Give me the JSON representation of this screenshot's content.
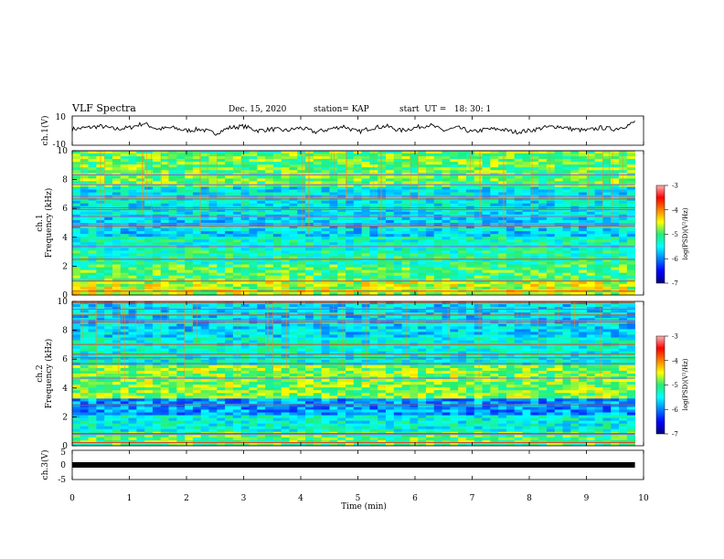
{
  "header": {
    "title": "VLF Spectra",
    "date": "Dec. 15, 2020",
    "station": "station= KAP",
    "start": "start  UT =   18: 30: 1"
  },
  "chart_data": [
    {
      "type": "line",
      "name": "ch1-voltage",
      "ylabel": "ch.1(V)",
      "ylim": [
        -10,
        10
      ],
      "yticks": [
        "10",
        "-10"
      ],
      "x": [
        0,
        0.25,
        0.5,
        0.75,
        1.0,
        1.25,
        1.5,
        1.75,
        2.0,
        2.25,
        2.5,
        2.75,
        3.0,
        3.25,
        3.5,
        3.75,
        4.0,
        4.25,
        4.5,
        4.75,
        5.0,
        5.25,
        5.5,
        5.75,
        6.0,
        6.25,
        6.5,
        6.75,
        7.0,
        7.25,
        7.5,
        7.75,
        8.0,
        8.25,
        8.5,
        8.75,
        9.0,
        9.25,
        9.5,
        9.75,
        9.85
      ],
      "values": [
        1,
        2,
        3,
        1,
        2,
        5,
        1,
        2,
        0,
        1,
        -2,
        2,
        3,
        0,
        1,
        0,
        2,
        -1,
        1,
        3,
        -1,
        2,
        3,
        0,
        2,
        4,
        0,
        2,
        -1,
        1,
        1,
        -1,
        0,
        2,
        3,
        1,
        0,
        2,
        1,
        4,
        6
      ],
      "xlim": [
        0,
        10
      ]
    },
    {
      "type": "heatmap",
      "name": "ch1-spectrogram",
      "ylabel": "ch.1 Frequency (kHz)",
      "ylim": [
        0,
        10
      ],
      "yticks": [
        "0",
        "2",
        "4",
        "6",
        "8",
        "10"
      ],
      "xlim": [
        0,
        10
      ],
      "colorbar": {
        "label": "log(PSD)(V²/Hz)",
        "range": [
          -7,
          -3
        ],
        "ticks": [
          "-3",
          "-4",
          "-5",
          "-6",
          "-7"
        ]
      },
      "bands_khz": [
        {
          "y0": 0,
          "y1": 1,
          "level": -4.6
        },
        {
          "y0": 1,
          "y1": 2.2,
          "level": -5.0
        },
        {
          "y0": 2.2,
          "y1": 3,
          "level": -5.2
        },
        {
          "y0": 3,
          "y1": 4,
          "level": -5.3
        },
        {
          "y0": 4,
          "y1": 5.4,
          "level": -5.6
        },
        {
          "y0": 5.4,
          "y1": 7.5,
          "level": -5.5
        },
        {
          "y0": 7.5,
          "y1": 10,
          "level": -4.9
        }
      ]
    },
    {
      "type": "heatmap",
      "name": "ch2-spectrogram",
      "ylabel": "ch.2 Frequency (kHz)",
      "ylim": [
        0,
        10
      ],
      "yticks": [
        "0",
        "2",
        "4",
        "6",
        "8",
        "10"
      ],
      "xlim": [
        0,
        10
      ],
      "colorbar": {
        "label": "log(PSD)(V²/Hz)",
        "range": [
          -7,
          -3
        ],
        "ticks": [
          "-3",
          "-4",
          "-5",
          "-6",
          "-7"
        ]
      },
      "bands_khz": [
        {
          "y0": 0,
          "y1": 1,
          "level": -5.0
        },
        {
          "y0": 1,
          "y1": 2.2,
          "level": -5.4
        },
        {
          "y0": 2.2,
          "y1": 3.2,
          "level": -5.9
        },
        {
          "y0": 3.2,
          "y1": 5.5,
          "level": -4.8
        },
        {
          "y0": 5.5,
          "y1": 7.5,
          "level": -5.4
        },
        {
          "y0": 7.5,
          "y1": 10,
          "level": -5.6
        }
      ]
    },
    {
      "type": "line",
      "name": "ch3-voltage",
      "ylabel": "ch.3(V)",
      "ylim": [
        -5,
        5
      ],
      "yticks": [
        "5",
        "0",
        "-5"
      ],
      "x": [
        0,
        9.85
      ],
      "values": [
        0,
        0
      ],
      "xlim": [
        0,
        10
      ]
    }
  ],
  "xaxis": {
    "label": "Time (min)",
    "ticks": [
      "0",
      "1",
      "2",
      "3",
      "4",
      "5",
      "6",
      "7",
      "8",
      "9",
      "10"
    ],
    "range": [
      0,
      10
    ]
  }
}
